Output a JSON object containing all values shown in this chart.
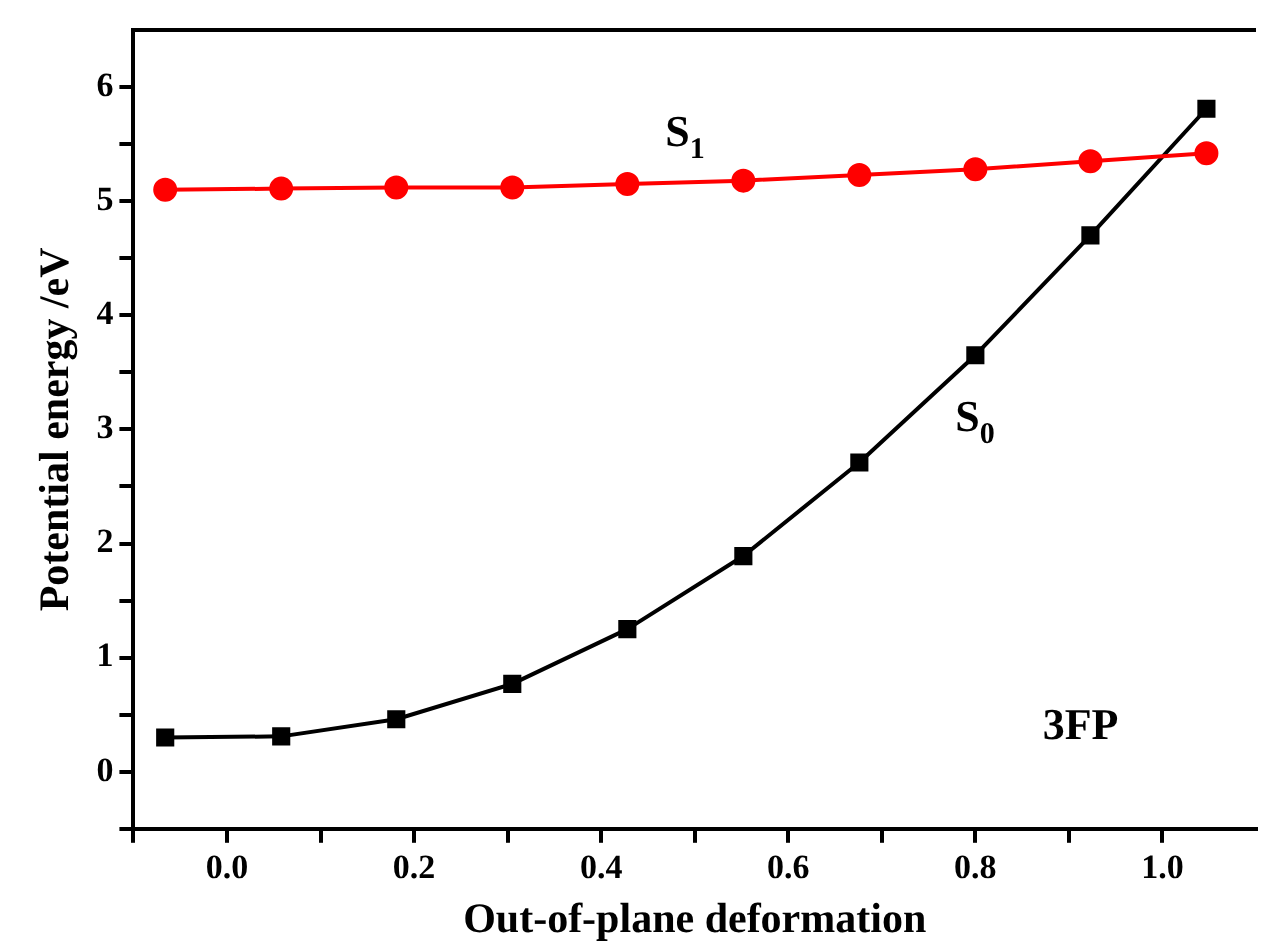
{
  "chart_data": {
    "type": "line",
    "xlabel": "Out-of-plane deformation",
    "ylabel": "Potential energy /eV",
    "x": [
      -0.066,
      0.058,
      0.181,
      0.305,
      0.428,
      0.552,
      0.676,
      0.8,
      0.923,
      1.047
    ],
    "series": [
      {
        "name": "S$_{1}$",
        "color": "#ff0000",
        "marker": "circle",
        "values": [
          5.1,
          5.11,
          5.12,
          5.12,
          5.15,
          5.18,
          5.23,
          5.28,
          5.35,
          5.42
        ]
      },
      {
        "name": "S$_{0}$",
        "color": "#000000",
        "marker": "square",
        "values": [
          0.3,
          0.31,
          0.46,
          0.77,
          1.25,
          1.89,
          2.71,
          3.65,
          4.7,
          5.81
        ]
      }
    ],
    "xlim": [
      -0.1,
      1.1
    ],
    "xticks": [
      {
        "value": -0.1,
        "label": null
      },
      {
        "value": 0,
        "label": "0.0"
      },
      {
        "value": 0.1,
        "label": null
      },
      0.2,
      {
        "value": 0.3,
        "label": null
      },
      0.4,
      {
        "value": 0.5,
        "label": null
      },
      0.6,
      {
        "value": 0.7,
        "label": null
      },
      0.8,
      {
        "value": 0.9,
        "label": null
      },
      {
        "value": 1,
        "label": "1.0"
      }
    ],
    "ylim": [
      -0.5,
      6.5
    ],
    "yticks": [
      {
        "value": -0.5,
        "label": null
      },
      0,
      {
        "value": 0.5,
        "label": null
      },
      1,
      {
        "value": 1.5,
        "label": null
      },
      2,
      {
        "value": 2.5,
        "label": null
      },
      3,
      {
        "value": 3.5,
        "label": null
      },
      4,
      {
        "value": 4.5,
        "label": null
      },
      5,
      {
        "value": 5.5,
        "label": null
      },
      6
    ],
    "annotations": [
      "3FP"
    ],
    "grid": false,
    "legend": false,
    "line_style": "solid"
  }
}
